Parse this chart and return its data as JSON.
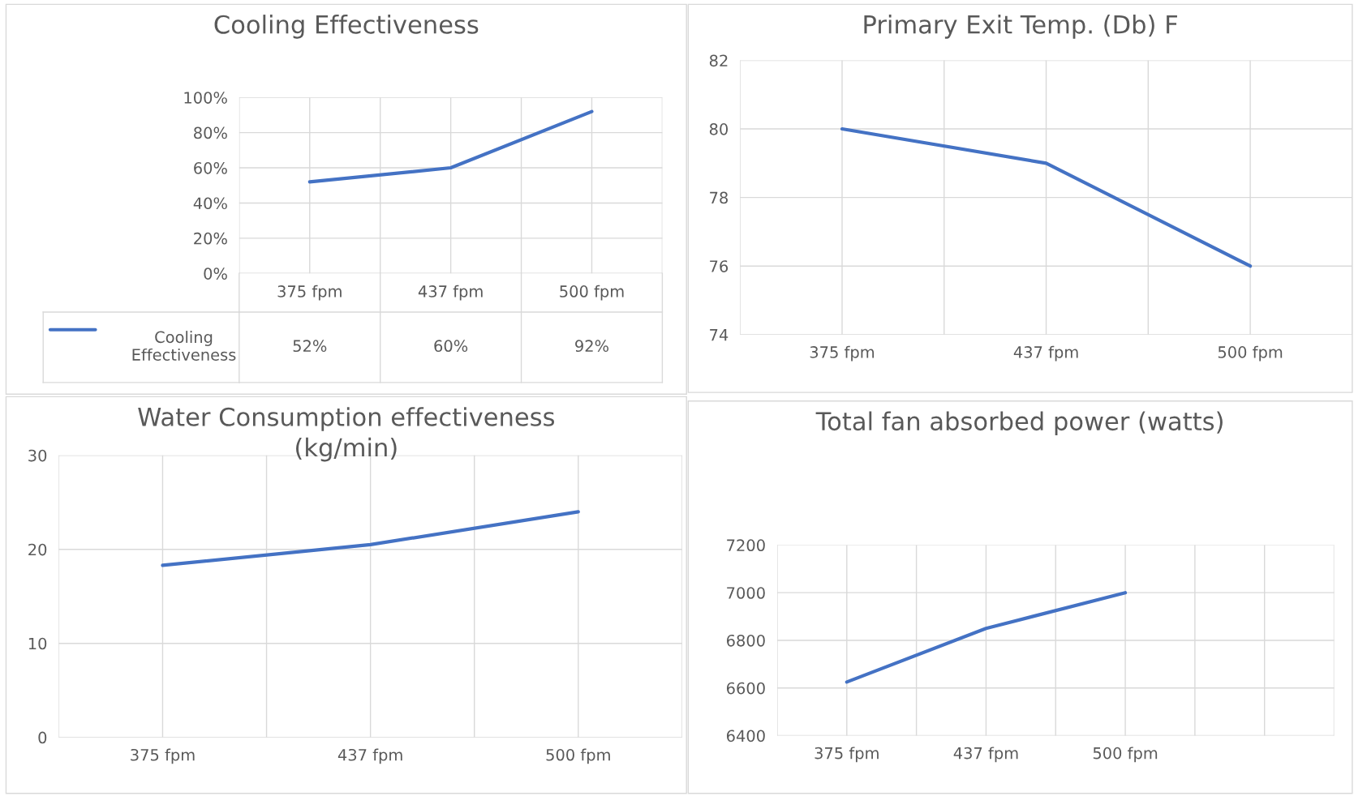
{
  "chart_data": [
    {
      "type": "line",
      "title": "Cooling Effectiveness",
      "categories": [
        "375 fpm",
        "437 fpm",
        "500 fpm"
      ],
      "series": [
        {
          "name": "Cooling Effectiveness",
          "color": "#4472c4",
          "values": [
            52,
            60,
            92
          ]
        }
      ],
      "ylim": [
        0,
        100
      ],
      "yticks": [
        {
          "value": 0,
          "label": "0%"
        },
        {
          "value": 20,
          "label": "20%"
        },
        {
          "value": 40,
          "label": "40%"
        },
        {
          "value": 60,
          "label": "60%"
        },
        {
          "value": 80,
          "label": "80%"
        },
        {
          "value": 100,
          "label": "100%"
        }
      ],
      "value_labels": [
        "52%",
        "60%",
        "92%"
      ],
      "grid": true,
      "legend": "bottom left"
    },
    {
      "type": "line",
      "title": "Primary Exit Temp. (Db) F",
      "categories": [
        "375 fpm",
        "437 fpm",
        "500 fpm"
      ],
      "series": [
        {
          "color": "#4472c4",
          "values": [
            80,
            79,
            76
          ]
        }
      ],
      "ylim": [
        74,
        82
      ],
      "yticks": [
        74,
        76,
        78,
        80,
        82
      ],
      "grid": true
    },
    {
      "type": "line",
      "title": "Water Consumption effectiveness (kg/min)",
      "categories": [
        "375 fpm",
        "437 fpm",
        "500 fpm"
      ],
      "series": [
        {
          "color": "#4472c4",
          "values": [
            18.3,
            20.5,
            24.0
          ]
        }
      ],
      "ylim": [
        0,
        30
      ],
      "yticks": [
        0,
        10,
        20,
        30
      ],
      "grid": true
    },
    {
      "type": "line",
      "title": "Total fan absorbed power (watts)",
      "categories": [
        "375 fpm",
        "437 fpm",
        "500 fpm",
        null
      ],
      "series": [
        {
          "color": "#4472c4",
          "values": [
            6625,
            6850,
            7000,
            null
          ]
        }
      ],
      "ylim": [
        6400,
        7200
      ],
      "yticks": [
        6400,
        6600,
        6800,
        7000,
        7200
      ],
      "grid": true
    }
  ]
}
